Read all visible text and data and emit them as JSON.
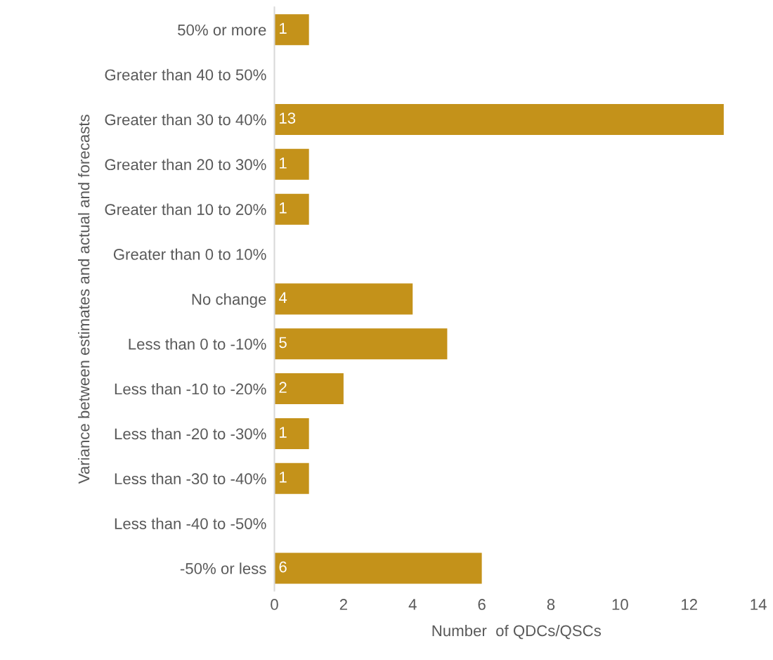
{
  "chart_data": {
    "type": "bar",
    "orientation": "horizontal",
    "ylabel": "Variance between estimates and actual and forecasts",
    "xlabel": "Number  of QDCs/QSCs",
    "categories": [
      "50% or more",
      "Greater than 40 to 50%",
      "Greater than 30 to 40%",
      "Greater than 20 to 30%",
      "Greater than 10 to 20%",
      "Greater than 0 to 10%",
      "No change",
      "Less than 0 to -10%",
      "Less than -10 to -20%",
      "Less than -20 to -30%",
      "Less than -30 to -40%",
      "Less than -40 to -50%",
      "-50% or less"
    ],
    "values": [
      1,
      0,
      13,
      1,
      1,
      0,
      4,
      5,
      2,
      1,
      1,
      0,
      6
    ],
    "value_labels": [
      "1",
      null,
      "13",
      "1",
      "1",
      null,
      "4",
      "5",
      "2",
      "1",
      "1",
      null,
      "6"
    ],
    "color": "#c4921a",
    "xlim": [
      0,
      14
    ],
    "xticks": [
      0,
      2,
      4,
      6,
      8,
      10,
      12,
      14
    ],
    "grid": false
  }
}
